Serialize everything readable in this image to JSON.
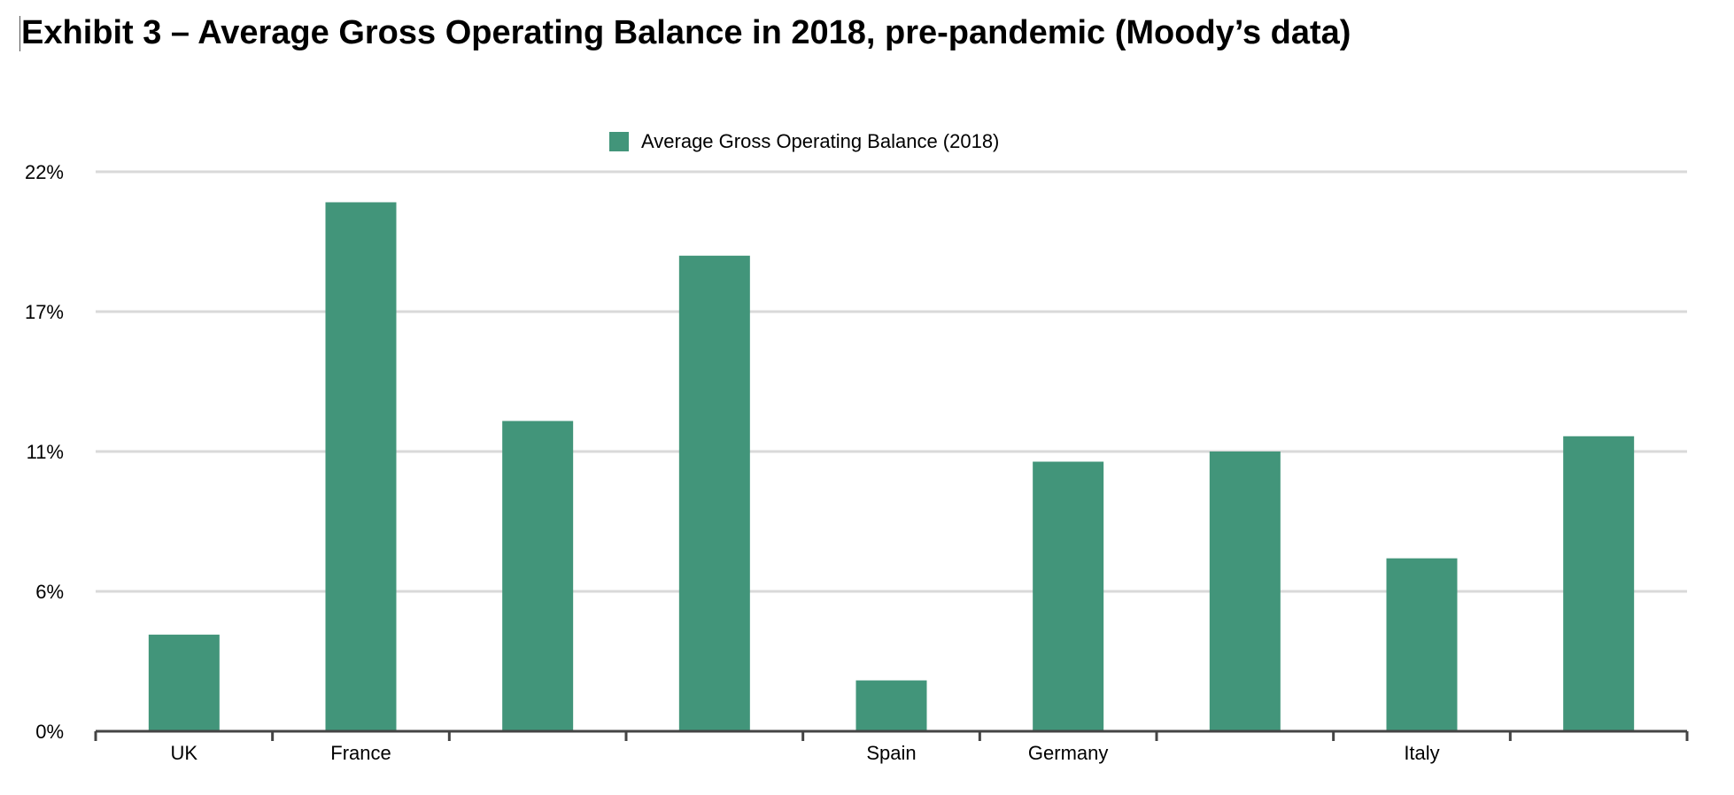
{
  "chart_data": {
    "type": "bar",
    "title": "Exhibit 3 – Average Gross Operating Balance in 2018, pre-pandemic (Moody’s data)",
    "categories": [
      "UK",
      "France",
      "",
      "",
      "Spain",
      "Germany",
      "",
      "Italy",
      ""
    ],
    "series": [
      {
        "name": "Average Gross Operating Balance (2018)",
        "color": "#42957a",
        "values": [
          3.8,
          20.8,
          12.2,
          18.7,
          2.0,
          10.6,
          11.0,
          6.8,
          11.6
        ]
      }
    ],
    "y_ticks": [
      "0%",
      "6%",
      "11%",
      "17%",
      "22%"
    ],
    "y_tick_values": [
      0,
      5.5,
      11,
      16.5,
      22
    ],
    "ylim": [
      0,
      22
    ],
    "xlabel": "",
    "ylabel": "",
    "grid": true,
    "legend_position": "top-center"
  }
}
